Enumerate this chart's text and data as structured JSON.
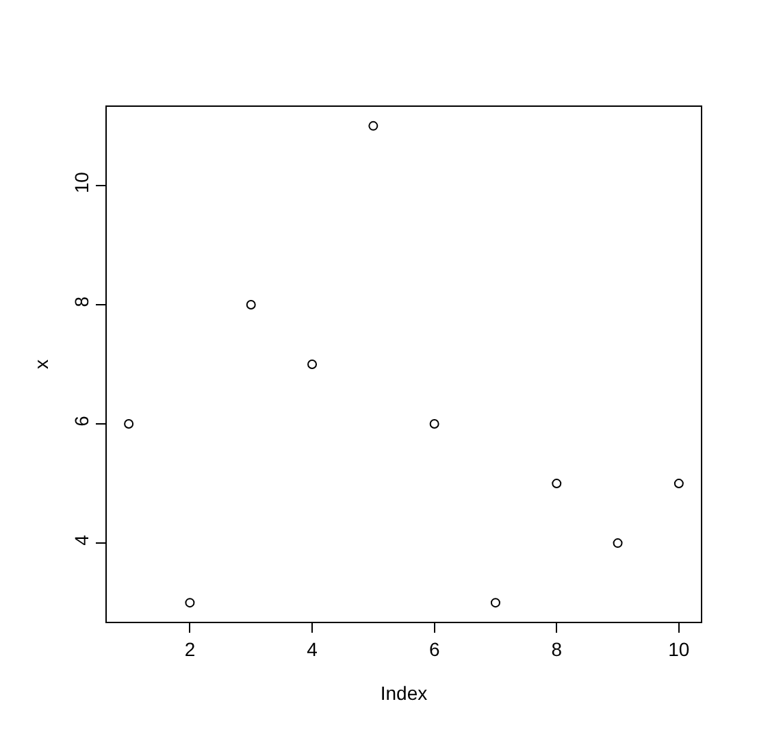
{
  "chart_data": {
    "type": "scatter",
    "xlabel": "Index",
    "ylabel": "x",
    "x": [
      1,
      2,
      3,
      4,
      5,
      6,
      7,
      8,
      9,
      10
    ],
    "series": [
      {
        "color": "#000000",
        "values": [
          6,
          3,
          8,
          7,
          11,
          6,
          3,
          5,
          4,
          5
        ]
      }
    ],
    "xlim": [
      0.64,
      10.36
    ],
    "ylim": [
      2.68,
      11.32
    ],
    "xticks": [
      2,
      4,
      6,
      8,
      10
    ],
    "yticks": [
      4,
      6,
      8,
      10
    ],
    "marker": "circle"
  }
}
